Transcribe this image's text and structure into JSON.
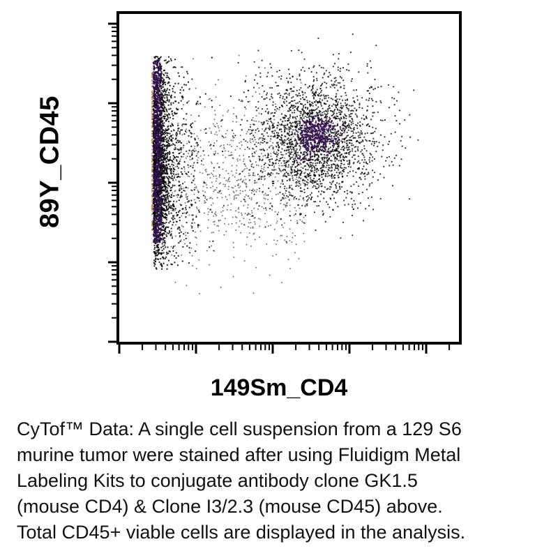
{
  "chart_data": {
    "type": "scatter",
    "title": "",
    "xlabel": "149Sm_CD4",
    "ylabel": "89Y_CD45",
    "xscale": "log-like (arcsinh)",
    "yscale": "log-like (arcsinh)",
    "grid": false,
    "legend": "none",
    "point_color": "#000000",
    "density_colors": [
      "#000000",
      "#3a0e5c",
      "#c2611b"
    ],
    "populations": [
      {
        "name": "",
        "x_center": 0.1,
        "y_center": 0.55,
        "x_spread": 0.04,
        "y_spread": 0.2,
        "relative_density": 1.0
      },
      {
        "name": "",
        "x_center": 0.58,
        "y_center": 0.62,
        "x_spread": 0.12,
        "y_spread": 0.13,
        "relative_density": 0.55
      }
    ]
  },
  "caption": {
    "lines": [
      "CyTof™ Data: A single cell suspension from a 129 S6",
      "murine tumor were stained after using Fluidigm Metal",
      "Labeling Kits to conjugate antibody clone GK1.5",
      "(mouse CD4) & Clone I3/2.3 (mouse CD45) above.",
      "Total CD45+ viable cells are displayed in the analysis."
    ]
  }
}
